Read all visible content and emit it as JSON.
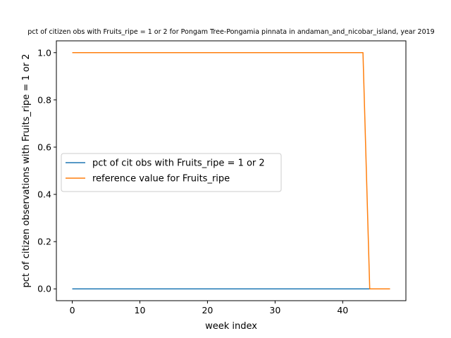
{
  "chart_data": {
    "type": "line",
    "title": "pct of citizen obs with Fruits_ripe = 1 or 2 for Pongam Tree-Pongamia pinnata in andaman_and_nicobar_island, year 2019",
    "xlabel": "week index",
    "ylabel": "pct of citizen observations with Fruits_ripe = 1 or 2",
    "xlim": [
      -2.35,
      49.35
    ],
    "ylim": [
      -0.05,
      1.05
    ],
    "xticks": [
      0,
      10,
      20,
      30,
      40
    ],
    "yticks": [
      0.0,
      0.2,
      0.4,
      0.6,
      0.8,
      1.0
    ],
    "xtick_labels": [
      "0",
      "10",
      "20",
      "30",
      "40"
    ],
    "ytick_labels": [
      "0.0",
      "0.2",
      "0.4",
      "0.6",
      "0.8",
      "1.0"
    ],
    "grid": false,
    "legend_position": "center-left",
    "series": [
      {
        "name": "pct of cit obs with Fruits_ripe = 1 or 2",
        "color": "#1f77b4",
        "x": [
          0,
          47
        ],
        "y": [
          0,
          0
        ]
      },
      {
        "name": "reference value for Fruits_ripe",
        "color": "#ff7f0e",
        "x": [
          0,
          43,
          44,
          47
        ],
        "y": [
          1,
          1,
          0,
          0
        ]
      }
    ]
  }
}
